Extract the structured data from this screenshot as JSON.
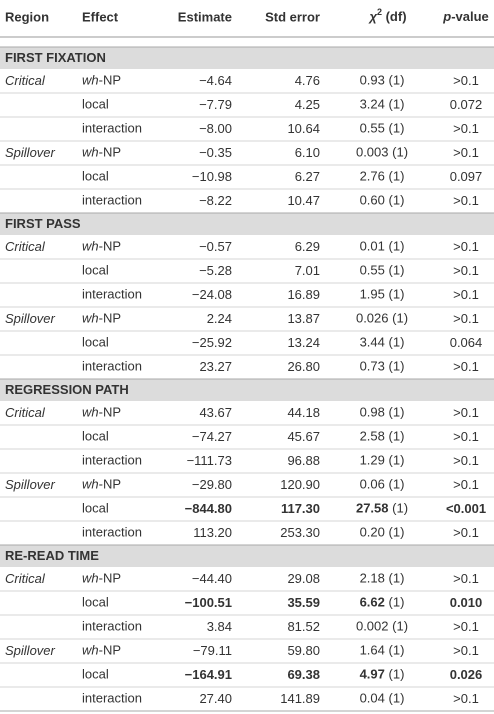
{
  "header": {
    "region": "Region",
    "effect": "Effect",
    "estimate": "Estimate",
    "std_error": "Std error",
    "chi_symbol": "χ",
    "chi_sup": "2",
    "chi_rest": " (df)",
    "p_italic": "p",
    "p_rest": "-value"
  },
  "sections": [
    {
      "title": "FIRST FIXATION",
      "rows": [
        {
          "region": "Critical",
          "effect_italic": "wh",
          "effect": "-NP",
          "estimate": "−4.64",
          "se": "4.76",
          "chi": "0.93",
          "df": "(1)",
          "p": ">0.1"
        },
        {
          "effect": "local",
          "estimate": "−7.79",
          "se": "4.25",
          "chi": "3.24",
          "df": "(1)",
          "p": "0.072"
        },
        {
          "effect": "interaction",
          "estimate": "−8.00",
          "se": "10.64",
          "chi": "0.55",
          "df": "(1)",
          "p": ">0.1"
        },
        {
          "region": "Spillover",
          "effect_italic": "wh",
          "effect": "-NP",
          "estimate": "−0.35",
          "se": "6.10",
          "chi": "0.003",
          "df": "(1)",
          "p": ">0.1"
        },
        {
          "effect": "local",
          "estimate": "−10.98",
          "se": "6.27",
          "chi": "2.76",
          "df": "(1)",
          "p": "0.097"
        },
        {
          "effect": "interaction",
          "estimate": "−8.22",
          "se": "10.47",
          "chi": "0.60",
          "df": "(1)",
          "p": ">0.1"
        }
      ]
    },
    {
      "title": "FIRST PASS",
      "rows": [
        {
          "region": "Critical",
          "effect_italic": "wh",
          "effect": "-NP",
          "estimate": "−0.57",
          "se": "6.29",
          "chi": "0.01",
          "df": "(1)",
          "p": ">0.1"
        },
        {
          "effect": "local",
          "estimate": "−5.28",
          "se": "7.01",
          "chi": "0.55",
          "df": "(1)",
          "p": ">0.1"
        },
        {
          "effect": "interaction",
          "estimate": "−24.08",
          "se": "16.89",
          "chi": "1.95",
          "df": "(1)",
          "p": ">0.1"
        },
        {
          "region": "Spillover",
          "effect_italic": "wh",
          "effect": "-NP",
          "estimate": "2.24",
          "se": "13.87",
          "chi": "0.026",
          "df": "(1)",
          "p": ">0.1"
        },
        {
          "effect": "local",
          "estimate": "−25.92",
          "se": "13.24",
          "chi": "3.44",
          "df": "(1)",
          "p": "0.064"
        },
        {
          "effect": "interaction",
          "estimate": "23.27",
          "se": "26.80",
          "chi": "0.73",
          "df": "(1)",
          "p": ">0.1"
        }
      ]
    },
    {
      "title": "REGRESSION PATH",
      "rows": [
        {
          "region": "Critical",
          "effect_italic": "wh",
          "effect": "-NP",
          "estimate": "43.67",
          "se": "44.18",
          "chi": "0.98",
          "df": "(1)",
          "p": ">0.1"
        },
        {
          "effect": "local",
          "estimate": "−74.27",
          "se": "45.67",
          "chi": "2.58",
          "df": "(1)",
          "p": ">0.1"
        },
        {
          "effect": "interaction",
          "estimate": "−111.73",
          "se": "96.88",
          "chi": "1.29",
          "df": "(1)",
          "p": ">0.1"
        },
        {
          "region": "Spillover",
          "effect_italic": "wh",
          "effect": "-NP",
          "estimate": "−29.80",
          "se": "120.90",
          "chi": "0.06",
          "df": "(1)",
          "p": ">0.1"
        },
        {
          "effect": "local",
          "estimate": "−844.80",
          "se": "117.30",
          "chi": "27.58",
          "df": "(1)",
          "p": "<0.001",
          "bold": true
        },
        {
          "effect": "interaction",
          "estimate": "113.20",
          "se": "253.30",
          "chi": "0.20",
          "df": "(1)",
          "p": ">0.1"
        }
      ]
    },
    {
      "title": "RE-READ TIME",
      "rows": [
        {
          "region": "Critical",
          "effect_italic": "wh",
          "effect": "-NP",
          "estimate": "−44.40",
          "se": "29.08",
          "chi": "2.18",
          "df": "(1)",
          "p": ">0.1"
        },
        {
          "effect": "local",
          "estimate": "−100.51",
          "se": "35.59",
          "chi": "6.62",
          "df": "(1)",
          "p": "0.010",
          "bold": true
        },
        {
          "effect": "interaction",
          "estimate": "3.84",
          "se": "81.52",
          "chi": "0.002",
          "df": "(1)",
          "p": ">0.1"
        },
        {
          "region": "Spillover",
          "effect_italic": "wh",
          "effect": "-NP",
          "estimate": "−79.11",
          "se": "59.80",
          "chi": "1.64",
          "df": "(1)",
          "p": ">0.1"
        },
        {
          "effect": "local",
          "estimate": "−164.91",
          "se": "69.38",
          "chi": "4.97",
          "df": "(1)",
          "p": "0.026",
          "bold": true
        },
        {
          "effect": "interaction",
          "estimate": "27.40",
          "se": "141.89",
          "chi": "0.04",
          "df": "(1)",
          "p": ">0.1"
        }
      ]
    }
  ]
}
